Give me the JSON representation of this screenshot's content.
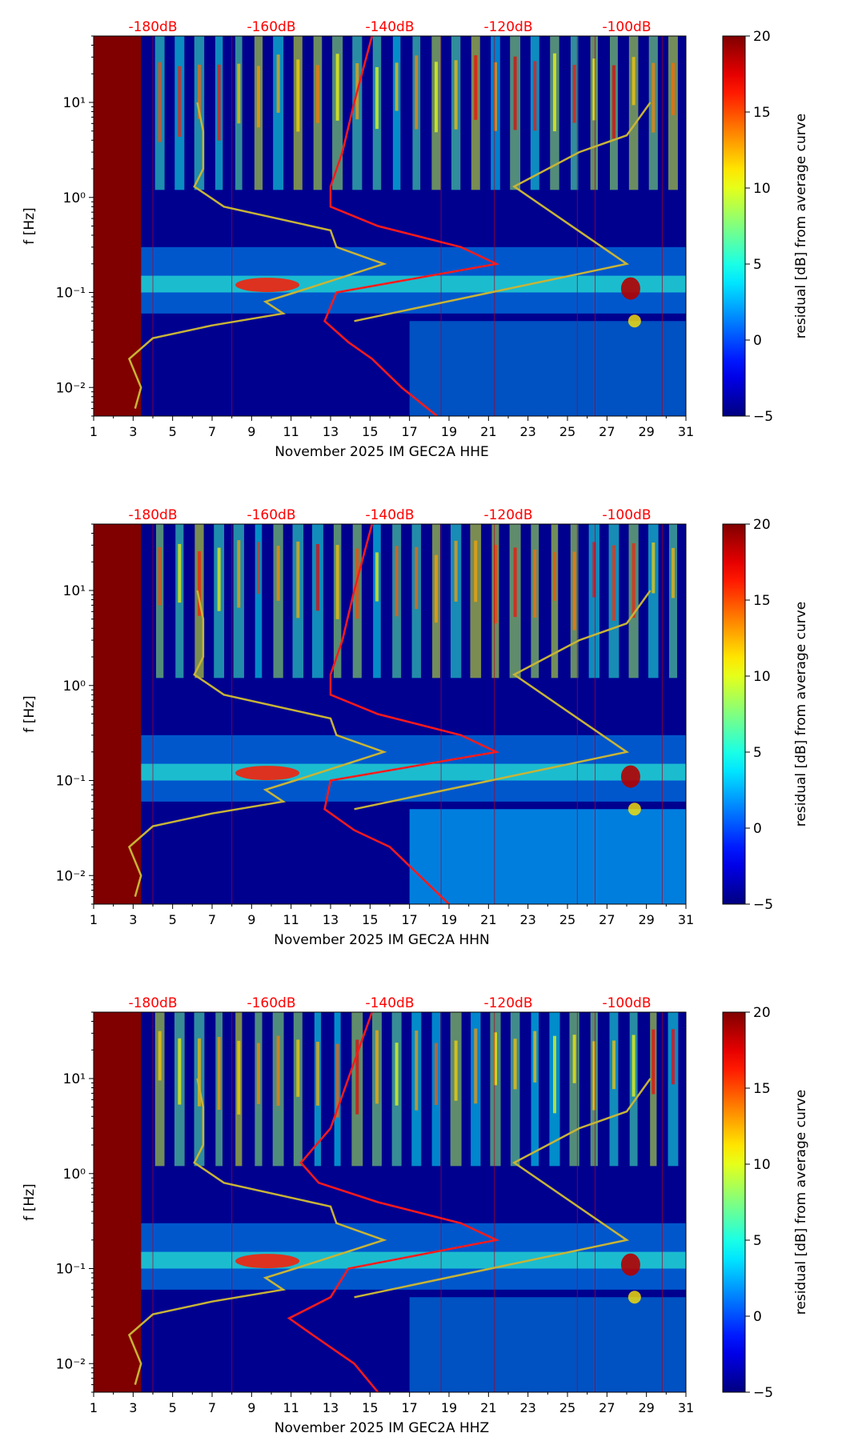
{
  "colors": {
    "db_label": "#ff0000",
    "median_line": "#ff1a1a",
    "model_line": "#c8b436",
    "no_data": "#800000",
    "background": "#00008f"
  },
  "chart_data": [
    {
      "type": "heatmap",
      "title": "",
      "xlabel": "November 2025 IM GEC2A  HHE",
      "ylabel": "f [Hz]",
      "x_ticks": [
        "1",
        "3",
        "5",
        "7",
        "9",
        "11",
        "13",
        "15",
        "17",
        "19",
        "21",
        "23",
        "25",
        "27",
        "29",
        "31"
      ],
      "xlim": [
        1,
        31
      ],
      "y_ticks": [
        "10⁻²",
        "10⁻¹",
        "10⁰",
        "10¹"
      ],
      "ylim": [
        0.005,
        50
      ],
      "top_ticks": [
        "-180dB",
        "-160dB",
        "-140dB",
        "-120dB",
        "-100dB"
      ],
      "top_axis_db": [
        -180,
        -160,
        -140,
        -120,
        -100
      ],
      "colorbar": {
        "label": "residual [dB] from average curve",
        "ticks": [
          "20",
          "15",
          "10",
          "5",
          "0",
          "−5"
        ],
        "range": [
          -5,
          20
        ]
      },
      "no_data_until_day": 3.4,
      "vertical_events_days": [
        4,
        8,
        18.6,
        21.3,
        25.5,
        26.4,
        29.8
      ],
      "series": [
        {
          "name": "model_line",
          "points": [
            [
              0.006,
              -183
            ],
            [
              0.01,
              -182
            ],
            [
              0.02,
              -184
            ],
            [
              0.033,
              -180
            ],
            [
              0.045,
              -170
            ],
            [
              0.06,
              -158
            ],
            [
              0.08,
              -161
            ],
            [
              0.1,
              -156
            ],
            [
              0.2,
              -141
            ],
            [
              0.3,
              -149
            ],
            [
              0.45,
              -150
            ],
            [
              0.8,
              -168
            ],
            [
              1.3,
              -173
            ],
            [
              2.0,
              -171.5
            ],
            [
              5.0,
              -171.5
            ],
            [
              10.0,
              -172.5
            ],
            [
              0.05,
              -146
            ],
            [
              0.2,
              -100
            ],
            [
              1.3,
              -119
            ],
            [
              3.0,
              -108
            ],
            [
              4.5,
              -100
            ],
            [
              10.0,
              -96
            ]
          ]
        },
        {
          "name": "median_line",
          "points": [
            [
              0.005,
              -132
            ],
            [
              0.01,
              -138
            ],
            [
              0.02,
              -143
            ],
            [
              0.03,
              -147
            ],
            [
              0.05,
              -151
            ],
            [
              0.1,
              -149
            ],
            [
              0.2,
              -122
            ],
            [
              0.3,
              -128
            ],
            [
              0.5,
              -142
            ],
            [
              0.8,
              -150
            ],
            [
              1.3,
              -150
            ],
            [
              3.0,
              -148
            ],
            [
              10.0,
              -146
            ],
            [
              50.0,
              -143
            ]
          ]
        }
      ]
    },
    {
      "type": "heatmap",
      "title": "",
      "xlabel": "November 2025 IM GEC2A  HHN",
      "ylabel": "f [Hz]",
      "x_ticks": [
        "1",
        "3",
        "5",
        "7",
        "9",
        "11",
        "13",
        "15",
        "17",
        "19",
        "21",
        "23",
        "25",
        "27",
        "29",
        "31"
      ],
      "xlim": [
        1,
        31
      ],
      "y_ticks": [
        "10⁻²",
        "10⁻¹",
        "10⁰",
        "10¹"
      ],
      "ylim": [
        0.005,
        50
      ],
      "top_ticks": [
        "-180dB",
        "-160dB",
        "-140dB",
        "-120dB",
        "-100dB"
      ],
      "top_axis_db": [
        -180,
        -160,
        -140,
        -120,
        -100
      ],
      "colorbar": {
        "label": "residual [dB] from average curve",
        "ticks": [
          "20",
          "15",
          "10",
          "5",
          "0",
          "−5"
        ],
        "range": [
          -5,
          20
        ]
      },
      "no_data_until_day": 3.4,
      "vertical_events_days": [
        4,
        8,
        18.6,
        21.3,
        25.5,
        26.4,
        29.8
      ],
      "series": [
        {
          "name": "model_line",
          "points": [
            [
              0.006,
              -183
            ],
            [
              0.01,
              -182
            ],
            [
              0.02,
              -184
            ],
            [
              0.033,
              -180
            ],
            [
              0.045,
              -170
            ],
            [
              0.06,
              -158
            ],
            [
              0.08,
              -161
            ],
            [
              0.1,
              -156
            ],
            [
              0.2,
              -141
            ],
            [
              0.3,
              -149
            ],
            [
              0.45,
              -150
            ],
            [
              0.8,
              -168
            ],
            [
              1.3,
              -173
            ],
            [
              2.0,
              -171.5
            ],
            [
              5.0,
              -171.5
            ],
            [
              10.0,
              -172.5
            ],
            [
              0.05,
              -146
            ],
            [
              0.2,
              -100
            ],
            [
              1.3,
              -119
            ],
            [
              3.0,
              -108
            ],
            [
              4.5,
              -100
            ],
            [
              10.0,
              -96
            ]
          ]
        },
        {
          "name": "median_line",
          "points": [
            [
              0.005,
              -130
            ],
            [
              0.01,
              -135
            ],
            [
              0.02,
              -140
            ],
            [
              0.03,
              -146
            ],
            [
              0.05,
              -151
            ],
            [
              0.1,
              -150
            ],
            [
              0.2,
              -122
            ],
            [
              0.3,
              -128
            ],
            [
              0.5,
              -142
            ],
            [
              0.8,
              -150
            ],
            [
              1.3,
              -150
            ],
            [
              3.0,
              -148
            ],
            [
              10.0,
              -146
            ],
            [
              50.0,
              -143
            ]
          ]
        }
      ]
    },
    {
      "type": "heatmap",
      "title": "",
      "xlabel": "November 2025 IM GEC2A  HHZ",
      "ylabel": "f [Hz]",
      "x_ticks": [
        "1",
        "3",
        "5",
        "7",
        "9",
        "11",
        "13",
        "15",
        "17",
        "19",
        "21",
        "23",
        "25",
        "27",
        "29",
        "31"
      ],
      "xlim": [
        1,
        31
      ],
      "y_ticks": [
        "10⁻²",
        "10⁻¹",
        "10⁰",
        "10¹"
      ],
      "ylim": [
        0.005,
        50
      ],
      "top_ticks": [
        "-180dB",
        "-160dB",
        "-140dB",
        "-120dB",
        "-100dB"
      ],
      "top_axis_db": [
        -180,
        -160,
        -140,
        -120,
        -100
      ],
      "colorbar": {
        "label": "residual [dB] from average curve",
        "ticks": [
          "20",
          "15",
          "10",
          "5",
          "0",
          "−5"
        ],
        "range": [
          -5,
          20
        ]
      },
      "no_data_until_day": 3.4,
      "vertical_events_days": [
        4,
        8,
        18.6,
        21.3,
        25.5,
        26.4,
        29.8
      ],
      "series": [
        {
          "name": "model_line",
          "points": [
            [
              0.006,
              -183
            ],
            [
              0.01,
              -182
            ],
            [
              0.02,
              -184
            ],
            [
              0.033,
              -180
            ],
            [
              0.045,
              -170
            ],
            [
              0.06,
              -158
            ],
            [
              0.08,
              -161
            ],
            [
              0.1,
              -156
            ],
            [
              0.2,
              -141
            ],
            [
              0.3,
              -149
            ],
            [
              0.45,
              -150
            ],
            [
              0.8,
              -168
            ],
            [
              1.3,
              -173
            ],
            [
              2.0,
              -171.5
            ],
            [
              5.0,
              -171.5
            ],
            [
              10.0,
              -172.5
            ],
            [
              0.05,
              -146
            ],
            [
              0.2,
              -100
            ],
            [
              1.3,
              -119
            ],
            [
              3.0,
              -108
            ],
            [
              4.5,
              -100
            ],
            [
              10.0,
              -96
            ]
          ]
        },
        {
          "name": "median_line",
          "points": [
            [
              0.005,
              -142
            ],
            [
              0.01,
              -146
            ],
            [
              0.02,
              -153
            ],
            [
              0.03,
              -157
            ],
            [
              0.05,
              -150
            ],
            [
              0.1,
              -147
            ],
            [
              0.2,
              -122
            ],
            [
              0.3,
              -128
            ],
            [
              0.5,
              -142
            ],
            [
              0.8,
              -152
            ],
            [
              1.3,
              -155
            ],
            [
              3.0,
              -150
            ],
            [
              10.0,
              -147
            ],
            [
              50.0,
              -143
            ]
          ]
        }
      ]
    }
  ]
}
